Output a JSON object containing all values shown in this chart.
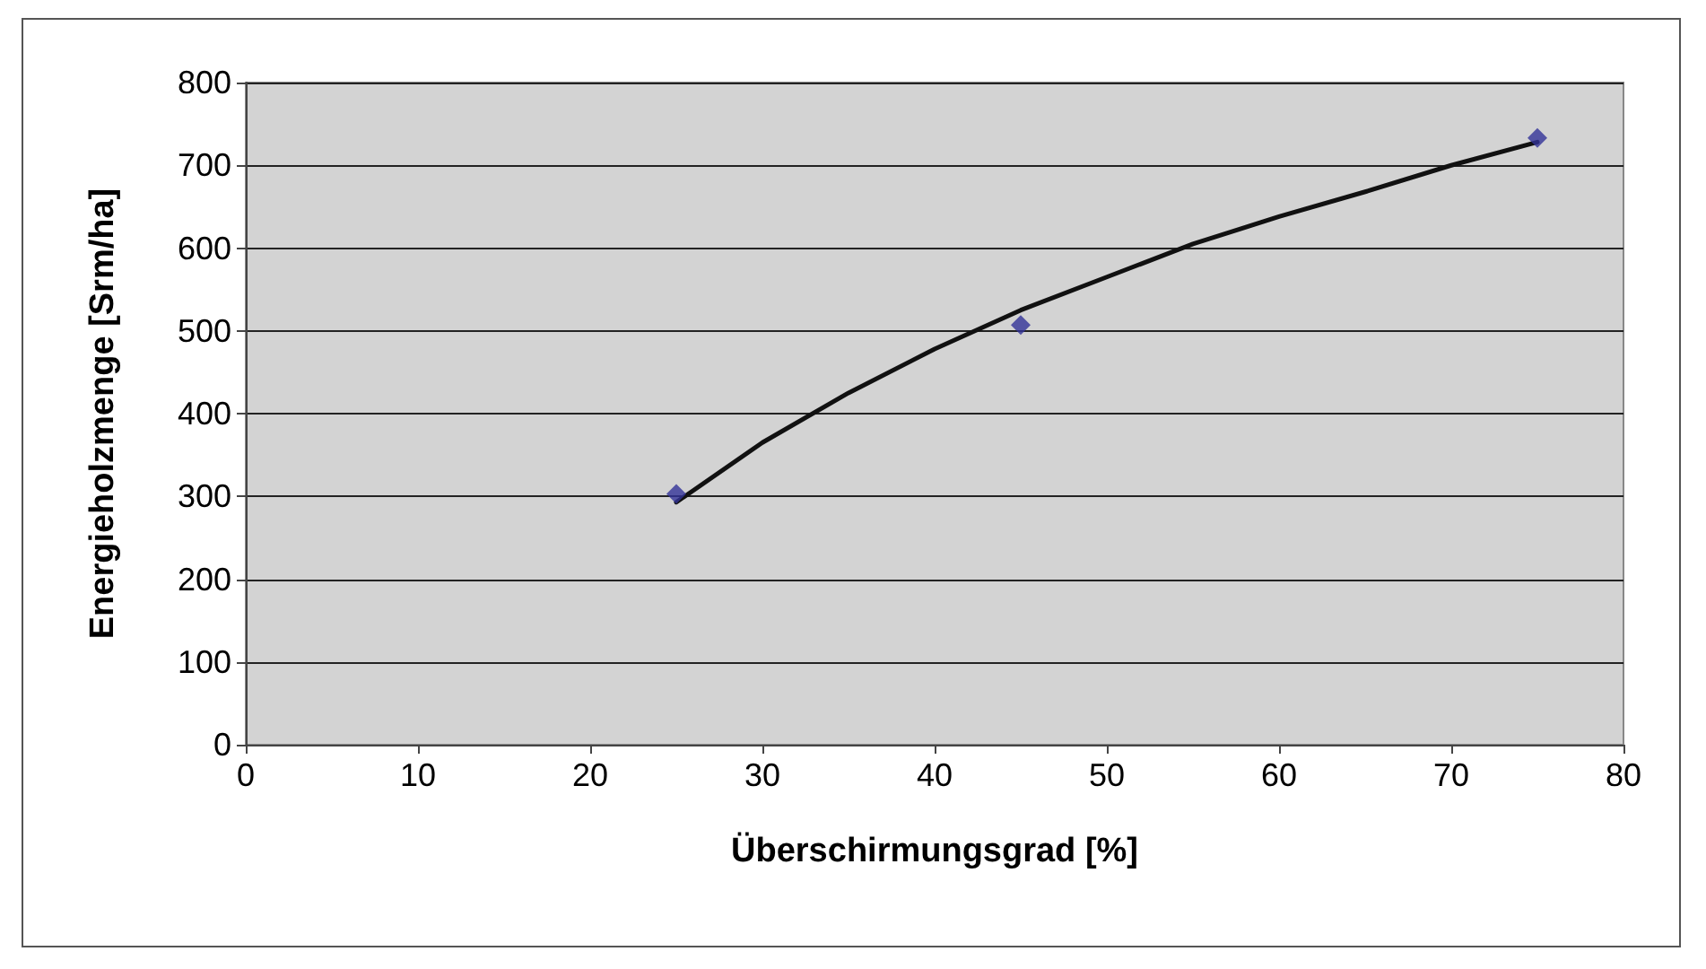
{
  "chart_data": {
    "type": "scatter",
    "xlabel": "Überschirmungsgrad [%]",
    "ylabel": "Energieholzmenge [Srm/ha]",
    "xlim": [
      0,
      80
    ],
    "xticks": [
      0,
      10,
      20,
      30,
      40,
      50,
      60,
      70,
      80
    ],
    "ylim": [
      0,
      800
    ],
    "yticks": [
      0,
      100,
      200,
      300,
      400,
      500,
      600,
      700,
      800
    ],
    "grid": "y",
    "marker": "diamond",
    "series": [
      {
        "color": "#333399",
        "x": [
          25,
          45,
          75
        ],
        "values": [
          303,
          507,
          733
        ]
      },
      {
        "type": "line",
        "color": "#111111",
        "marker": "none",
        "line_style": "solid",
        "x": [
          25,
          30,
          35,
          40,
          45,
          50,
          55,
          60,
          65,
          70,
          75
        ],
        "values": [
          293,
          365,
          425,
          478,
          525,
          565,
          605,
          638,
          668,
          700,
          728
        ]
      }
    ]
  }
}
